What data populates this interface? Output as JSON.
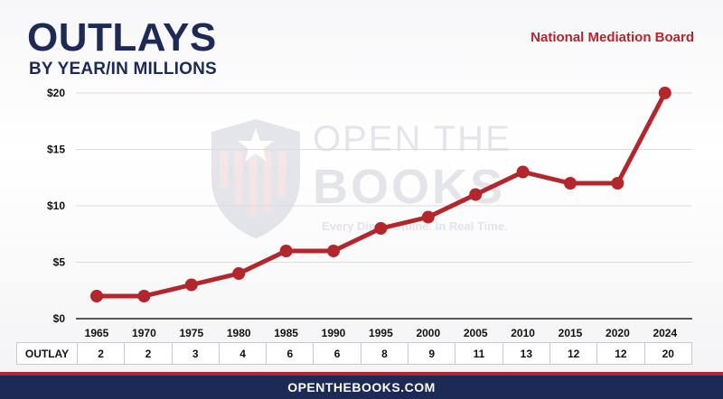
{
  "header": {
    "title": "OUTLAYS",
    "subtitle": "BY YEAR/IN MILLIONS",
    "agency": "National Mediation Board"
  },
  "watermark": {
    "line1": "OPEN THE",
    "line2": "BOOKS",
    "tagline": "Every Dime. Online. In Real Time."
  },
  "table": {
    "row_label": "OUTLAY"
  },
  "footer": {
    "url": "OPENTHEBOOKS.COM"
  },
  "chart_data": {
    "type": "line",
    "categories": [
      "1965",
      "1970",
      "1975",
      "1980",
      "1985",
      "1990",
      "1995",
      "2000",
      "2005",
      "2010",
      "2015",
      "2020",
      "2024"
    ],
    "series": [
      {
        "values": [
          2,
          2,
          3,
          4,
          6,
          6,
          8,
          9,
          11,
          13,
          12,
          12,
          20
        ]
      }
    ],
    "yticks": [
      "$0",
      "$5",
      "$10",
      "$15",
      "$20"
    ],
    "ytick_values": [
      0,
      5,
      10,
      15,
      20
    ],
    "ylim": [
      0,
      20
    ],
    "grid": true,
    "line_color": "#b3262b"
  }
}
